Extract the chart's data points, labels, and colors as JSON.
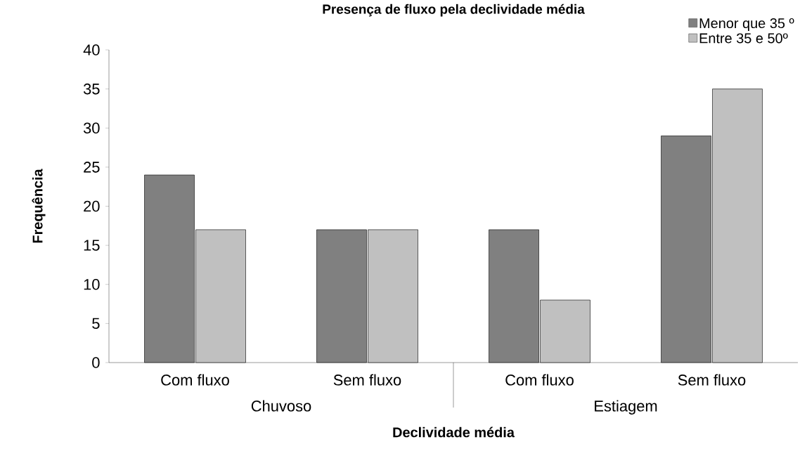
{
  "chart_data": {
    "type": "bar",
    "title": "Presença de fluxo pela declividade média",
    "xlabel": "Declividade média",
    "ylabel": "Frequência",
    "categories": [
      "Com fluxo",
      "Sem fluxo",
      "Com fluxo",
      "Sem fluxo"
    ],
    "annotations": [
      "Chuvoso",
      "Estiagem"
    ],
    "series": [
      {
        "name": "Menor que 35 º",
        "color": "#808080",
        "values": [
          24,
          17,
          17,
          29
        ]
      },
      {
        "name": "Entre 35 e 50º",
        "color": "#c0c0c0",
        "values": [
          17,
          17,
          8,
          35
        ]
      }
    ],
    "ylim": [
      0,
      40
    ],
    "yticks": [
      0,
      5,
      10,
      15,
      20,
      25,
      30,
      35,
      40
    ],
    "grid": false,
    "legend": "top right"
  }
}
